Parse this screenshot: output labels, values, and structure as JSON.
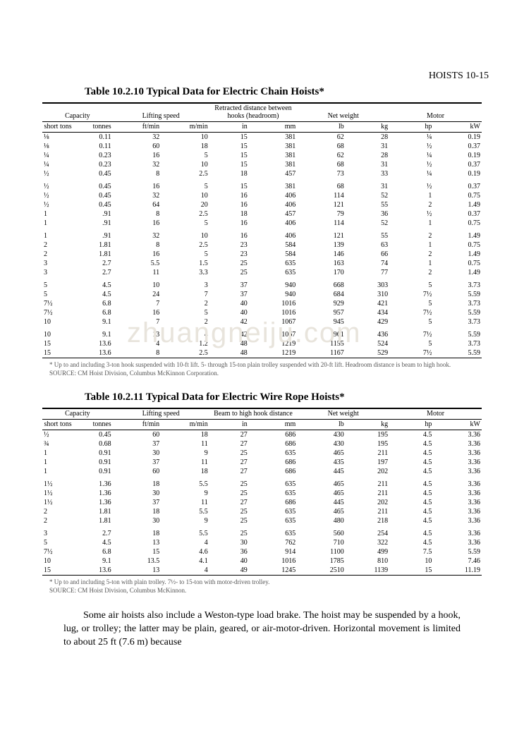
{
  "page_header": "HOISTS 10-15",
  "watermark": "zhuangneiju.com",
  "table1": {
    "title": "Table 10.2.10 Typical Data for Electric Chain Hoists*",
    "group_headers": [
      "Capacity",
      "Lifting speed",
      "Retracted distance between hooks (headroom)",
      "Net weight",
      "Motor"
    ],
    "unit_headers": [
      "short tons",
      "tonnes",
      "ft/min",
      "m/min",
      "in",
      "mm",
      "lb",
      "kg",
      "hp",
      "kW"
    ],
    "col_widths": [
      "7%",
      "9%",
      "11%",
      "11%",
      "9%",
      "11%",
      "11%",
      "10%",
      "10%",
      "11%"
    ],
    "rows": [
      [
        "⅛",
        "0.11",
        "32",
        "10",
        "15",
        "381",
        "62",
        "28",
        "¼",
        "0.19"
      ],
      [
        "⅛",
        "0.11",
        "60",
        "18",
        "15",
        "381",
        "68",
        "31",
        "½",
        "0.37"
      ],
      [
        "¼",
        "0.23",
        "16",
        "5",
        "15",
        "381",
        "62",
        "28",
        "¼",
        "0.19"
      ],
      [
        "¼",
        "0.23",
        "32",
        "10",
        "15",
        "381",
        "68",
        "31",
        "½",
        "0.37"
      ],
      [
        "½",
        "0.45",
        "8",
        "2.5",
        "18",
        "457",
        "73",
        "33",
        "¼",
        "0.19"
      ],
      [
        "½",
        "0.45",
        "16",
        "5",
        "15",
        "381",
        "68",
        "31",
        "½",
        "0.37"
      ],
      [
        "½",
        "0.45",
        "32",
        "10",
        "16",
        "406",
        "114",
        "52",
        "1",
        "0.75"
      ],
      [
        "½",
        "0.45",
        "64",
        "20",
        "16",
        "406",
        "121",
        "55",
        "2",
        "1.49"
      ],
      [
        "1",
        ".91",
        "8",
        "2.5",
        "18",
        "457",
        "79",
        "36",
        "½",
        "0.37"
      ],
      [
        "1",
        ".91",
        "16",
        "5",
        "16",
        "406",
        "114",
        "52",
        "1",
        "0.75"
      ],
      [
        "1",
        ".91",
        "32",
        "10",
        "16",
        "406",
        "121",
        "55",
        "2",
        "1.49"
      ],
      [
        "2",
        "1.81",
        "8",
        "2.5",
        "23",
        "584",
        "139",
        "63",
        "1",
        "0.75"
      ],
      [
        "2",
        "1.81",
        "16",
        "5",
        "23",
        "584",
        "146",
        "66",
        "2",
        "1.49"
      ],
      [
        "3",
        "2.7",
        "5.5",
        "1.5",
        "25",
        "635",
        "163",
        "74",
        "1",
        "0.75"
      ],
      [
        "3",
        "2.7",
        "11",
        "3.3",
        "25",
        "635",
        "170",
        "77",
        "2",
        "1.49"
      ],
      [
        "5",
        "4.5",
        "10",
        "3",
        "37",
        "940",
        "668",
        "303",
        "5",
        "3.73"
      ],
      [
        "5",
        "4.5",
        "24",
        "7",
        "37",
        "940",
        "684",
        "310",
        "7½",
        "5.59"
      ],
      [
        "7½",
        "6.8",
        "7",
        "2",
        "40",
        "1016",
        "929",
        "421",
        "5",
        "3.73"
      ],
      [
        "7½",
        "6.8",
        "16",
        "5",
        "40",
        "1016",
        "957",
        "434",
        "7½",
        "5.59"
      ],
      [
        "10",
        "9.1",
        "7",
        "2",
        "42",
        "1067",
        "945",
        "429",
        "5",
        "3.73"
      ],
      [
        "10",
        "9.1",
        "13",
        "4",
        "42",
        "1067",
        "961",
        "436",
        "7½",
        "5.59"
      ],
      [
        "15",
        "13.6",
        "4",
        "1.2",
        "48",
        "1219",
        "1155",
        "524",
        "5",
        "3.73"
      ],
      [
        "15",
        "13.6",
        "8",
        "2.5",
        "48",
        "1219",
        "1167",
        "529",
        "7½",
        "5.59"
      ]
    ],
    "group_breaks": [
      5,
      10,
      15,
      20
    ],
    "footnote": "* Up to and including 3-ton hook suspended with 10-ft lift. 5- through 15-ton plain trolley suspended with 20-ft lift. Headroom distance is beam to high hook.",
    "source": "SOURCE: CM Hoist Division, Columbus McKinnon Corporation."
  },
  "table2": {
    "title": "Table 10.2.11 Typical Data for Electric Wire Rope Hoists*",
    "group_headers": [
      "Capacity",
      "Lifting speed",
      "Beam to high hook distance",
      "Net weight",
      "Motor"
    ],
    "unit_headers": [
      "short tons",
      "tonnes",
      "ft/min",
      "m/min",
      "in",
      "mm",
      "lb",
      "kg",
      "hp",
      "kW"
    ],
    "col_widths": [
      "7%",
      "9%",
      "11%",
      "11%",
      "9%",
      "11%",
      "11%",
      "10%",
      "10%",
      "11%"
    ],
    "rows": [
      [
        "½",
        "0.45",
        "60",
        "18",
        "27",
        "686",
        "430",
        "195",
        "4.5",
        "3.36"
      ],
      [
        "¾",
        "0.68",
        "37",
        "11",
        "27",
        "686",
        "430",
        "195",
        "4.5",
        "3.36"
      ],
      [
        "1",
        "0.91",
        "30",
        "9",
        "25",
        "635",
        "465",
        "211",
        "4.5",
        "3.36"
      ],
      [
        "1",
        "0.91",
        "37",
        "11",
        "27",
        "686",
        "435",
        "197",
        "4.5",
        "3.36"
      ],
      [
        "1",
        "0.91",
        "60",
        "18",
        "27",
        "686",
        "445",
        "202",
        "4.5",
        "3.36"
      ],
      [
        "1½",
        "1.36",
        "18",
        "5.5",
        "25",
        "635",
        "465",
        "211",
        "4.5",
        "3.36"
      ],
      [
        "1½",
        "1.36",
        "30",
        "9",
        "25",
        "635",
        "465",
        "211",
        "4.5",
        "3.36"
      ],
      [
        "1½",
        "1.36",
        "37",
        "11",
        "27",
        "686",
        "445",
        "202",
        "4.5",
        "3.36"
      ],
      [
        "2",
        "1.81",
        "18",
        "5.5",
        "25",
        "635",
        "465",
        "211",
        "4.5",
        "3.36"
      ],
      [
        "2",
        "1.81",
        "30",
        "9",
        "25",
        "635",
        "480",
        "218",
        "4.5",
        "3.36"
      ],
      [
        "3",
        "2.7",
        "18",
        "5.5",
        "25",
        "635",
        "560",
        "254",
        "4.5",
        "3.36"
      ],
      [
        "5",
        "4.5",
        "13",
        "4",
        "30",
        "762",
        "710",
        "322",
        "4.5",
        "3.36"
      ],
      [
        "7½",
        "6.8",
        "15",
        "4.6",
        "36",
        "914",
        "1100",
        "499",
        "7.5",
        "5.59"
      ],
      [
        "10",
        "9.1",
        "13.5",
        "4.1",
        "40",
        "1016",
        "1785",
        "810",
        "10",
        "7.46"
      ],
      [
        "15",
        "13.6",
        "13",
        "4",
        "49",
        "1245",
        "2510",
        "1139",
        "15",
        "11.19"
      ]
    ],
    "group_breaks": [
      5,
      10
    ],
    "footnote": "* Up to and including 5-ton with plain trolley. 7½- to 15-ton with motor-driven trolley.",
    "source": "SOURCE: CM Hoist Division, Columbus McKinnon."
  },
  "body_paragraph": "Some air hoists also include a Weston-type load brake. The hoist may be suspended by a hook, lug, or trolley; the latter may be plain, geared, or air-motor-driven. Horizontal movement is limited to about 25 ft (7.6 m) because"
}
